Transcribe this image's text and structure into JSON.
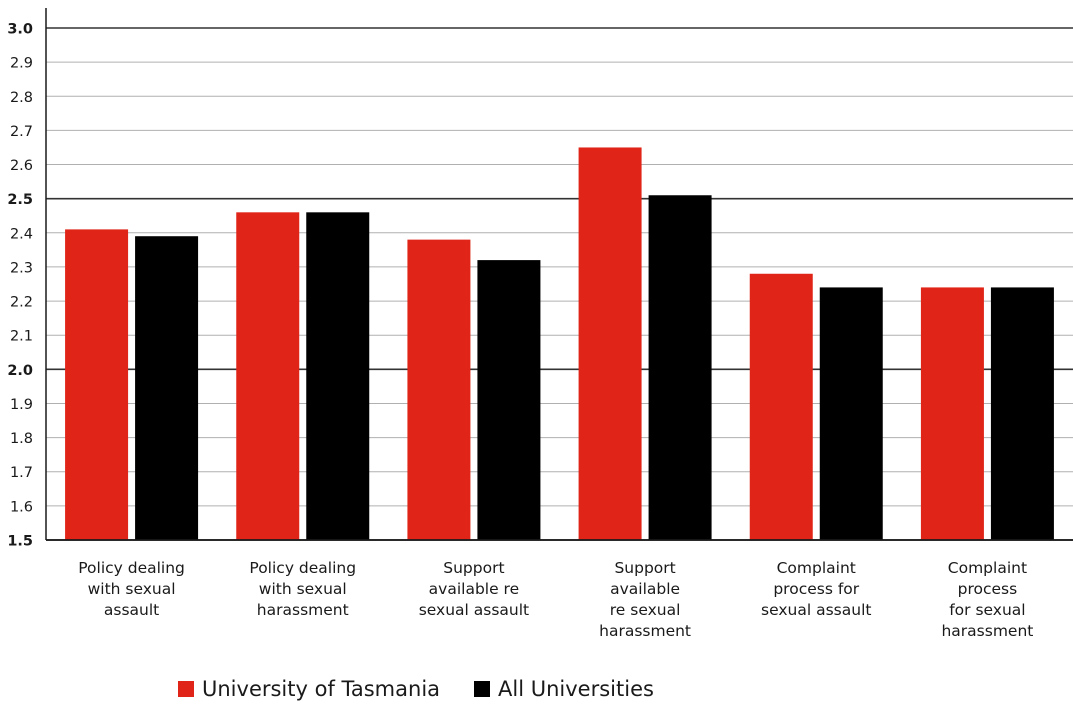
{
  "chart_data": {
    "type": "bar",
    "title": "",
    "xlabel": "",
    "ylabel": "",
    "ylim": [
      1.5,
      3.0
    ],
    "yticks": [
      "1.5",
      "1.6",
      "1.7",
      "1.8",
      "1.9",
      "2.0",
      "2.1",
      "2.2",
      "2.3",
      "2.4",
      "2.5",
      "2.6",
      "2.7",
      "2.8",
      "2.9",
      "3.0"
    ],
    "bold_ticks": [
      "1.5",
      "2.0",
      "2.5",
      "3.0"
    ],
    "grid": true,
    "legend_position": "bottom-left",
    "categories": [
      [
        "Policy dealing",
        "with sexual",
        "assault"
      ],
      [
        "Policy dealing",
        "with sexual",
        "harassment"
      ],
      [
        "Support",
        "available re",
        "sexual assault"
      ],
      [
        "Support",
        "available",
        "re sexual",
        "harassment"
      ],
      [
        "Complaint",
        "process for",
        "sexual assault"
      ],
      [
        "Complaint",
        "process",
        "for sexual",
        "harassment"
      ]
    ],
    "series": [
      {
        "name": "University of Tasmania",
        "color": "#e02518",
        "values": [
          2.41,
          2.46,
          2.38,
          2.65,
          2.28,
          2.24
        ]
      },
      {
        "name": "All Universities",
        "color": "#000000",
        "values": [
          2.39,
          2.46,
          2.32,
          2.51,
          2.24,
          2.24
        ]
      }
    ]
  }
}
